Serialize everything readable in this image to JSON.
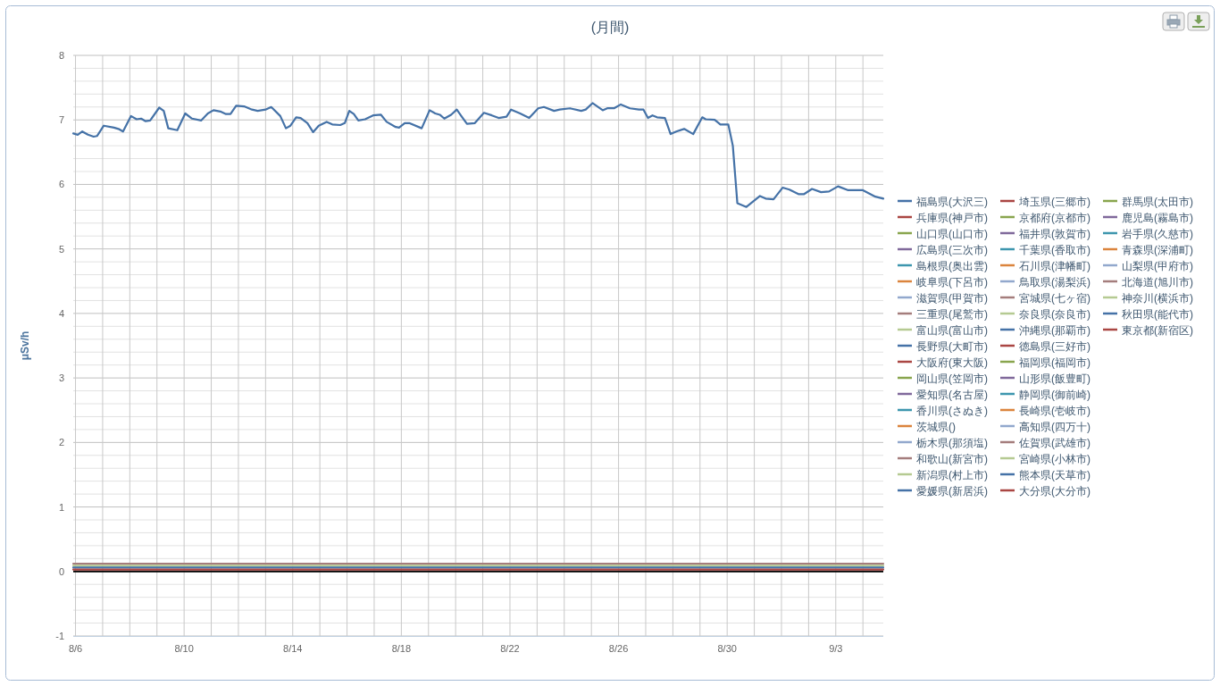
{
  "chart_data": {
    "type": "line",
    "title": "(月間)",
    "ylabel": "μSv/h",
    "legend": "right",
    "grid": true,
    "xlim": [
      "--08-05T22:00",
      "--09-04T18:00"
    ],
    "xticks": [
      {
        "value": "--08-06",
        "label": "8/6"
      },
      {
        "value": "--08-07",
        "label": null
      },
      {
        "value": "--08-08",
        "label": null
      },
      {
        "value": "--08-09",
        "label": null
      },
      {
        "value": "--08-10",
        "label": "8/10"
      },
      {
        "value": "--08-11",
        "label": null
      },
      {
        "value": "--08-12",
        "label": null
      },
      {
        "value": "--08-13",
        "label": null
      },
      {
        "value": "--08-14",
        "label": "8/14"
      },
      {
        "value": "--08-15",
        "label": null
      },
      {
        "value": "--08-16",
        "label": null
      },
      {
        "value": "--08-17",
        "label": null
      },
      {
        "value": "--08-18",
        "label": "8/18"
      },
      {
        "value": "--08-19",
        "label": null
      },
      {
        "value": "--08-20",
        "label": null
      },
      {
        "value": "--08-21",
        "label": null
      },
      {
        "value": "--08-22",
        "label": "8/22"
      },
      {
        "value": "--08-23",
        "label": null
      },
      {
        "value": "--08-24",
        "label": null
      },
      {
        "value": "--08-25",
        "label": null
      },
      {
        "value": "--08-26",
        "label": "8/26"
      },
      {
        "value": "--08-27",
        "label": null
      },
      {
        "value": "--08-28",
        "label": null
      },
      {
        "value": "--08-29",
        "label": null
      },
      {
        "value": "--08-30",
        "label": "8/30"
      },
      {
        "value": "--08-31",
        "label": null
      },
      {
        "value": "--09-01",
        "label": null
      },
      {
        "value": "--09-02",
        "label": null
      },
      {
        "value": "--09-03",
        "label": "9/3"
      },
      {
        "value": "--09-04",
        "label": null
      }
    ],
    "ylim": [
      -1,
      8
    ],
    "yticks": [
      -1,
      {
        "value": -0.8,
        "label": null
      },
      {
        "value": -0.6,
        "label": null
      },
      {
        "value": -0.4,
        "label": null
      },
      {
        "value": -0.2,
        "label": null
      },
      0,
      {
        "value": 0.2,
        "label": null
      },
      {
        "value": 0.4,
        "label": null
      },
      {
        "value": 0.6,
        "label": null
      },
      {
        "value": 0.8,
        "label": null
      },
      1,
      {
        "value": 1.2,
        "label": null
      },
      {
        "value": 1.4,
        "label": null
      },
      {
        "value": 1.6,
        "label": null
      },
      {
        "value": 1.8,
        "label": null
      },
      2,
      {
        "value": 2.2,
        "label": null
      },
      {
        "value": 2.4,
        "label": null
      },
      {
        "value": 2.6,
        "label": null
      },
      {
        "value": 2.8,
        "label": null
      },
      3,
      {
        "value": 3.2,
        "label": null
      },
      {
        "value": 3.4,
        "label": null
      },
      {
        "value": 3.6,
        "label": null
      },
      {
        "value": 3.8,
        "label": null
      },
      4,
      {
        "value": 4.2,
        "label": null
      },
      {
        "value": 4.4,
        "label": null
      },
      {
        "value": 4.6,
        "label": null
      },
      {
        "value": 4.8,
        "label": null
      },
      5,
      {
        "value": 5.2,
        "label": null
      },
      {
        "value": 5.4,
        "label": null
      },
      {
        "value": 5.6,
        "label": null
      },
      {
        "value": 5.8,
        "label": null
      },
      6,
      {
        "value": 6.2,
        "label": null
      },
      {
        "value": 6.4,
        "label": null
      },
      {
        "value": 6.6,
        "label": null
      },
      {
        "value": 6.8,
        "label": null
      },
      7,
      {
        "value": 7.2,
        "label": null
      },
      {
        "value": 7.4,
        "label": null
      },
      {
        "value": 7.6,
        "label": null
      },
      {
        "value": 7.8,
        "label": null
      },
      8
    ],
    "ref_lines": [
      {
        "axis": "y",
        "value": 0,
        "color": "#000000"
      }
    ],
    "x": [
      "--08-05T22:00",
      "--09-04T18:00"
    ],
    "series": [
      {
        "name": "福島県(大沢三)",
        "color": "#4572a7",
        "x": [
          "--08-05T22:00",
          "--08-06T02:00",
          "--08-06T06:00",
          "--08-06T11:00",
          "--08-06T16:00",
          "--08-06T19:00",
          "--08-07T01:00",
          "--08-07T10:00",
          "--08-07T14:00",
          "--08-07T18:00",
          "--08-08T01:00",
          "--08-08T06:00",
          "--08-08T10:00",
          "--08-08T14:00",
          "--08-08T18:00",
          "--08-09T02:00",
          "--08-09T06:00",
          "--08-09T10:00",
          "--08-09T18:00",
          "--08-10T01:00",
          "--08-10T07:00",
          "--08-10T15:00",
          "--08-10T21:00",
          "--08-11T02:00",
          "--08-11T08:00",
          "--08-11T13:00",
          "--08-11T17:00",
          "--08-11T22:00",
          "--08-12T05:00",
          "--08-12T12:00",
          "--08-12T17:00",
          "--08-13T00:00",
          "--08-13T05:00",
          "--08-13T13:00",
          "--08-13T18:00",
          "--08-13T22:00",
          "--08-14T03:00",
          "--08-14T07:00",
          "--08-14T13:00",
          "--08-14T18:00",
          "--08-14T23:00",
          "--08-15T06:00",
          "--08-15T11:00",
          "--08-15T18:00",
          "--08-15T22:00",
          "--08-16T02:00",
          "--08-16T06:00",
          "--08-16T10:00",
          "--08-16T16:00",
          "--08-16T23:00",
          "--08-17T06:00",
          "--08-17T11:00",
          "--08-17T19:00",
          "--08-17T22:00",
          "--08-18T03:00",
          "--08-18T07:00",
          "--08-18T18:00",
          "--08-19T01:00",
          "--08-19T06:00",
          "--08-19T10:00",
          "--08-19T14:00",
          "--08-19T20:00",
          "--08-20T01:00",
          "--08-20T05:00",
          "--08-20T10:00",
          "--08-20T17:00",
          "--08-21T01:00",
          "--08-21T08:00",
          "--08-21T14:00",
          "--08-21T21:00",
          "--08-22T01:00",
          "--08-22T09:00",
          "--08-22T17:00",
          "--08-23T01:00",
          "--08-23T06:00",
          "--08-23T15:00",
          "--08-23T20:00",
          "--08-24T05:00",
          "--08-24T15:00",
          "--08-24T19:00",
          "--08-25T01:00",
          "--08-25T10:00",
          "--08-25T14:00",
          "--08-25T20:00",
          "--08-26T02:00",
          "--08-26T10:00",
          "--08-26T18:00",
          "--08-26T22:00",
          "--08-27T02:00",
          "--08-27T06:00",
          "--08-27T10:00",
          "--08-27T17:00",
          "--08-27T22:00",
          "--08-28T03:00",
          "--08-28T10:00",
          "--08-28T18:00",
          "--08-29T02:00",
          "--08-29T05:00",
          "--08-29T13:00",
          "--08-29T18:00",
          "--08-30T01:00",
          "--08-30T05:00",
          "--08-30T09:00",
          "--08-30T17:00",
          "--08-31T05:00",
          "--08-31T10:00",
          "--08-31T17:00",
          "--09-01T01:00",
          "--09-01T07:00",
          "--09-01T15:00",
          "--09-01T20:00",
          "--09-02T03:00",
          "--09-02T11:00",
          "--09-02T18:00",
          "--09-03T02:00",
          "--09-03T11:00",
          "--09-03T18:00",
          "--09-04T00:00",
          "--09-04T11:00",
          "--09-04T18:00"
        ],
        "values": [
          6.79,
          6.77,
          6.82,
          6.77,
          6.74,
          6.75,
          6.91,
          6.88,
          6.86,
          6.82,
          7.06,
          7.01,
          7.02,
          6.98,
          6.99,
          7.19,
          7.14,
          6.87,
          6.84,
          7.1,
          7.02,
          6.99,
          7.1,
          7.15,
          7.13,
          7.09,
          7.09,
          7.22,
          7.21,
          7.16,
          7.14,
          7.16,
          7.2,
          7.06,
          6.87,
          6.91,
          7.04,
          7.03,
          6.95,
          6.81,
          6.91,
          6.97,
          6.93,
          6.92,
          6.95,
          7.14,
          7.09,
          6.99,
          7.01,
          7.07,
          7.08,
          6.97,
          6.89,
          6.88,
          6.95,
          6.95,
          6.87,
          7.15,
          7.1,
          7.08,
          7.02,
          7.08,
          7.16,
          7.06,
          6.94,
          6.95,
          7.11,
          7.07,
          7.03,
          7.05,
          7.16,
          7.1,
          7.03,
          7.18,
          7.2,
          7.14,
          7.16,
          7.18,
          7.14,
          7.16,
          7.26,
          7.15,
          7.18,
          7.18,
          7.24,
          7.18,
          7.16,
          7.16,
          7.03,
          7.07,
          7.04,
          7.03,
          6.78,
          6.82,
          6.86,
          6.78,
          7.04,
          7.01,
          7.0,
          6.93,
          6.93,
          6.6,
          5.71,
          5.65,
          5.82,
          5.78,
          5.77,
          5.95,
          5.92,
          5.85,
          5.85,
          5.93,
          5.88,
          5.89,
          5.97,
          5.91,
          5.91,
          5.91,
          5.81,
          5.78
        ]
      },
      {
        "name": "兵庫県(神戸市)",
        "color": "#aa4643",
        "values": [
          null,
          null
        ]
      },
      {
        "name": "山口県(山口市)",
        "color": "#89a54e",
        "values": [
          null,
          null
        ]
      },
      {
        "name": "広島県(三次市)",
        "color": "#80699b",
        "values": [
          null,
          null
        ]
      },
      {
        "name": "島根県(奥出雲)",
        "color": "#3d96ae",
        "values": [
          null,
          null
        ]
      },
      {
        "name": "岐阜県(下呂市)",
        "color": "#db843d",
        "values": [
          null,
          null
        ]
      },
      {
        "name": "滋賀県(甲賀市)",
        "color": "#92a8cd",
        "values": [
          null,
          null
        ]
      },
      {
        "name": "三重県(尾鷲市)",
        "color": "#a47d7c",
        "values": [
          null,
          null
        ]
      },
      {
        "name": "富山県(富山市)",
        "color": "#b5ca92",
        "values": [
          null,
          null
        ]
      },
      {
        "name": "長野県(大町市)",
        "color": "#4572a7",
        "values": [
          null,
          null
        ]
      },
      {
        "name": "大阪府(東大阪)",
        "color": "#aa4643",
        "values": [
          null,
          null
        ]
      },
      {
        "name": "岡山県(笠岡市)",
        "color": "#89a54e",
        "values": [
          null,
          null
        ]
      },
      {
        "name": "愛知県(名古屋)",
        "color": "#80699b",
        "values": [
          null,
          null
        ]
      },
      {
        "name": "香川県(さぬき)",
        "color": "#3d96ae",
        "values": [
          null,
          null
        ]
      },
      {
        "name": "茨城県()",
        "color": "#db843d",
        "values": [
          null,
          null
        ]
      },
      {
        "name": "栃木県(那須塩)",
        "color": "#92a8cd",
        "values": [
          null,
          null
        ]
      },
      {
        "name": "和歌山(新宮市)",
        "color": "#a47d7c",
        "values": [
          null,
          null
        ]
      },
      {
        "name": "新潟県(村上市)",
        "color": "#b5ca92",
        "values": [
          null,
          null
        ]
      },
      {
        "name": "愛媛県(新居浜)",
        "color": "#4572a7",
        "values": [
          null,
          null
        ]
      },
      {
        "name": "埼玉県(三郷市)",
        "color": "#aa4643",
        "values": [
          null,
          null
        ]
      },
      {
        "name": "京都府(京都市)",
        "color": "#89a54e",
        "values": [
          null,
          null
        ]
      },
      {
        "name": "福井県(敦賀市)",
        "color": "#80699b",
        "values": [
          null,
          null
        ]
      },
      {
        "name": "千葉県(香取市)",
        "color": "#3d96ae",
        "values": [
          null,
          null
        ]
      },
      {
        "name": "石川県(津幡町)",
        "color": "#db843d",
        "values": [
          null,
          null
        ]
      },
      {
        "name": "鳥取県(湯梨浜)",
        "color": "#92a8cd",
        "values": [
          null,
          null
        ]
      },
      {
        "name": "宮城県(七ヶ宿)",
        "color": "#a47d7c",
        "values": [
          null,
          null
        ]
      },
      {
        "name": "奈良県(奈良市)",
        "color": "#b5ca92",
        "values": [
          null,
          null
        ]
      },
      {
        "name": "沖縄県(那覇市)",
        "color": "#4572a7",
        "values": [
          null,
          null
        ]
      },
      {
        "name": "徳島県(三好市)",
        "color": "#aa4643",
        "values": [
          null,
          null
        ]
      },
      {
        "name": "福岡県(福岡市)",
        "color": "#89a54e",
        "values": [
          null,
          null
        ]
      },
      {
        "name": "山形県(飯豊町)",
        "color": "#80699b",
        "values": [
          null,
          null
        ]
      },
      {
        "name": "静岡県(御前崎)",
        "color": "#3d96ae",
        "values": [
          null,
          null
        ]
      },
      {
        "name": "長崎県(壱岐市)",
        "color": "#db843d",
        "values": [
          null,
          null
        ]
      },
      {
        "name": "高知県(四万十)",
        "color": "#92a8cd",
        "values": [
          null,
          null
        ]
      },
      {
        "name": "佐賀県(武雄市)",
        "color": "#a47d7c",
        "values": [
          null,
          null
        ]
      },
      {
        "name": "宮崎県(小林市)",
        "color": "#b5ca92",
        "values": [
          null,
          null
        ]
      },
      {
        "name": "熊本県(天草市)",
        "color": "#4572a7",
        "values": [
          null,
          null
        ]
      },
      {
        "name": "大分県(大分市)",
        "color": "#aa4643",
        "values": [
          null,
          null
        ]
      },
      {
        "name": "群馬県(太田市)",
        "color": "#89a54e",
        "values": [
          null,
          null
        ]
      },
      {
        "name": "鹿児島(霧島市)",
        "color": "#80699b",
        "values": [
          null,
          null
        ]
      },
      {
        "name": "岩手県(久慈市)",
        "color": "#3d96ae",
        "values": [
          null,
          null
        ]
      },
      {
        "name": "青森県(深浦町)",
        "color": "#db843d",
        "values": [
          null,
          null
        ]
      },
      {
        "name": "山梨県(甲府市)",
        "color": "#92a8cd",
        "values": [
          null,
          null
        ]
      },
      {
        "name": "北海道(旭川市)",
        "color": "#a47d7c",
        "values": [
          0.12,
          0.12
        ]
      },
      {
        "name": "神奈川(横浜市)",
        "color": "#b5ca92",
        "values": [
          0.09,
          0.09
        ]
      },
      {
        "name": "秋田県(能代市)",
        "color": "#4572a7",
        "values": [
          0.06,
          0.06
        ]
      },
      {
        "name": "東京都(新宿区)",
        "color": "#aa4643",
        "values": [
          0.03,
          0.03
        ]
      }
    ]
  }
}
